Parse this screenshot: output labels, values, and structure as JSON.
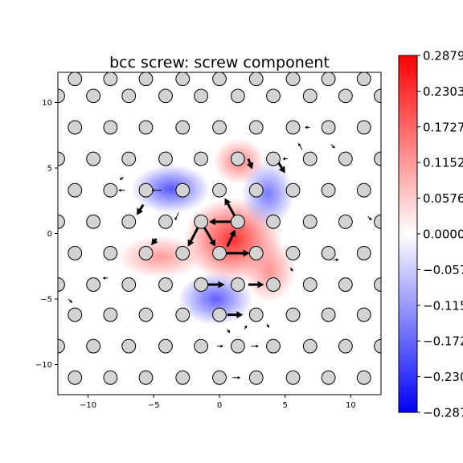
{
  "chart_data": {
    "type": "heatmap",
    "title": "bcc screw: screw component",
    "xlabel": "",
    "ylabel": "",
    "xlim": [
      -12.3,
      12.3
    ],
    "ylim": [
      -12.3,
      12.3
    ],
    "x_ticks": [
      -10,
      -5,
      0,
      5,
      10
    ],
    "y_ticks": [
      -10,
      -5,
      0,
      5,
      10
    ],
    "x_tick_labels": [
      "−10",
      "−5",
      "0",
      "5",
      "10"
    ],
    "y_tick_labels": [
      "−10",
      "−5",
      "0",
      "5",
      "10"
    ],
    "colorbar": {
      "colormap": "bwr",
      "vmin": -0.2879,
      "vmax": 0.2879,
      "ticks": [
        0.2879,
        0.2303,
        0.1727,
        0.1152,
        0.0576,
        0.0,
        -0.0576,
        -0.1152,
        -0.1727,
        -0.2303,
        -0.2879
      ],
      "tick_labels": [
        "0.2879",
        "0.2303",
        "0.1727",
        "0.1152",
        "0.0576",
        "0.0000",
        "−0.0576",
        "−0.1152",
        "−0.1727",
        "−0.2303",
        "−0.2879"
      ],
      "colors": {
        "min": "#0000ff",
        "mid": "#ffffff",
        "max": "#ff0000"
      }
    },
    "atom_rows": [
      {
        "y": 11.8,
        "x": [
          -11.0,
          -8.3,
          -5.6,
          -2.8,
          0.0,
          2.8,
          5.6,
          8.3,
          11.0
        ]
      },
      {
        "y": 10.5,
        "x": [
          -12.3,
          -9.6,
          -6.9,
          -4.1,
          -1.4,
          1.4,
          4.1,
          6.9,
          9.6,
          12.3
        ]
      },
      {
        "y": 8.1,
        "x": [
          -11.0,
          -8.3,
          -5.6,
          -2.8,
          0.0,
          2.8,
          5.6,
          8.3,
          11.0
        ]
      },
      {
        "y": 5.7,
        "x": [
          -12.3,
          -9.6,
          -6.9,
          -4.1,
          -1.4,
          1.4,
          4.1,
          6.9,
          9.6,
          12.3
        ]
      },
      {
        "y": 3.3,
        "x": [
          -11.0,
          -8.3,
          -5.6,
          -2.8,
          0.0,
          2.8,
          5.6,
          8.3,
          11.0
        ]
      },
      {
        "y": 0.9,
        "x": [
          -12.3,
          -9.6,
          -6.9,
          -4.1,
          -1.4,
          1.4,
          4.1,
          6.9,
          9.6,
          12.3
        ]
      },
      {
        "y": -1.5,
        "x": [
          -11.0,
          -8.3,
          -5.6,
          -2.8,
          0.0,
          2.8,
          5.6,
          8.3,
          11.0
        ]
      },
      {
        "y": -3.9,
        "x": [
          -12.3,
          -9.6,
          -6.9,
          -4.1,
          -1.4,
          1.4,
          4.1,
          6.9,
          9.6,
          12.3
        ]
      },
      {
        "y": -6.2,
        "x": [
          -11.0,
          -8.3,
          -5.6,
          -2.8,
          0.0,
          2.8,
          5.6,
          8.3,
          11.0
        ]
      },
      {
        "y": -8.6,
        "x": [
          -12.3,
          -9.6,
          -6.9,
          -4.1,
          -1.4,
          1.4,
          4.1,
          6.9,
          9.6,
          12.3
        ]
      },
      {
        "y": -11.0,
        "x": [
          -11.0,
          -8.3,
          -5.6,
          -2.8,
          0.0,
          2.8,
          5.6,
          8.3,
          11.0
        ]
      }
    ],
    "field_lobes": [
      {
        "x": 1.0,
        "y": -0.5,
        "value": 0.25,
        "sx": 3.0,
        "sy": 2.6
      },
      {
        "x": -4.5,
        "y": -1.8,
        "value": 0.12,
        "sx": 2.6,
        "sy": 1.3
      },
      {
        "x": 3.8,
        "y": -2.8,
        "value": 0.13,
        "sx": 1.6,
        "sy": 2.0
      },
      {
        "x": 1.5,
        "y": 5.5,
        "value": 0.15,
        "sx": 1.6,
        "sy": 1.4
      },
      {
        "x": -3.7,
        "y": 3.4,
        "value": -0.2,
        "sx": 2.4,
        "sy": 1.5
      },
      {
        "x": 3.7,
        "y": 3.0,
        "value": -0.16,
        "sx": 1.6,
        "sy": 2.0
      },
      {
        "x": -0.3,
        "y": -5.0,
        "value": -0.19,
        "sx": 2.3,
        "sy": 1.6
      }
    ],
    "arrows_bold": [
      {
        "x1": 1.4,
        "y1": 0.9,
        "x2": -0.8,
        "y2": 0.9
      },
      {
        "x1": 1.4,
        "y1": 0.9,
        "x2": 0.4,
        "y2": 2.7
      },
      {
        "x1": -1.4,
        "y1": 0.9,
        "x2": -0.3,
        "y2": -1.0
      },
      {
        "x1": -1.4,
        "y1": 0.9,
        "x2": -2.4,
        "y2": -1.0
      },
      {
        "x1": 0.0,
        "y1": -1.5,
        "x2": 2.3,
        "y2": -1.5
      },
      {
        "x1": 0.6,
        "y1": -1.0,
        "x2": 1.2,
        "y2": 0.3
      },
      {
        "x1": 2.2,
        "y1": 5.7,
        "x2": 2.5,
        "y2": 4.9
      },
      {
        "x1": 4.5,
        "y1": 5.4,
        "x2": 5.0,
        "y2": 4.6
      },
      {
        "x1": -1.0,
        "y1": -3.9,
        "x2": 0.4,
        "y2": -3.9
      },
      {
        "x1": 2.2,
        "y1": -3.9,
        "x2": 3.4,
        "y2": -3.9
      },
      {
        "x1": 0.6,
        "y1": -6.2,
        "x2": 1.8,
        "y2": -6.2
      },
      {
        "x1": -5.8,
        "y1": 2.2,
        "x2": -6.3,
        "y2": 1.4
      },
      {
        "x1": -4.8,
        "y1": -0.4,
        "x2": -5.2,
        "y2": -0.9
      }
    ],
    "arrows_small": [
      {
        "x1": -3.1,
        "y1": 1.6,
        "x2": -3.4,
        "y2": 1.0
      },
      {
        "x1": -4.4,
        "y1": 3.3,
        "x2": -5.2,
        "y2": 3.3
      },
      {
        "x1": -7.2,
        "y1": 3.3,
        "x2": -7.7,
        "y2": 3.3
      },
      {
        "x1": 5.2,
        "y1": 5.7,
        "x2": 4.8,
        "y2": 5.7
      },
      {
        "x1": 6.3,
        "y1": 6.4,
        "x2": 6.0,
        "y2": 6.9
      },
      {
        "x1": 8.5,
        "y1": 6.8,
        "x2": 8.8,
        "y2": 6.5
      },
      {
        "x1": 6.9,
        "y1": 8.1,
        "x2": 6.5,
        "y2": 8.1
      },
      {
        "x1": -9.9,
        "y1": 5.7,
        "x2": -9.6,
        "y2": 5.7
      },
      {
        "x1": -7.3,
        "y1": 4.3,
        "x2": -7.6,
        "y2": 4.1
      },
      {
        "x1": 1.0,
        "y1": -11.0,
        "x2": 1.6,
        "y2": -11.0
      },
      {
        "x1": -0.2,
        "y1": -8.6,
        "x2": 0.3,
        "y2": -8.6
      },
      {
        "x1": 2.4,
        "y1": -8.6,
        "x2": 3.0,
        "y2": -8.6
      },
      {
        "x1": 5.4,
        "y1": -2.6,
        "x2": 5.6,
        "y2": -2.9
      },
      {
        "x1": 0.6,
        "y1": -7.3,
        "x2": 0.8,
        "y2": -7.6
      },
      {
        "x1": 1.9,
        "y1": -7.3,
        "x2": 2.1,
        "y2": -7.0
      },
      {
        "x1": 3.6,
        "y1": -6.9,
        "x2": 3.8,
        "y2": -7.2
      },
      {
        "x1": -8.5,
        "y1": -3.4,
        "x2": -8.9,
        "y2": -3.4
      },
      {
        "x1": 8.7,
        "y1": -2.0,
        "x2": 9.1,
        "y2": -2.0
      },
      {
        "x1": 11.3,
        "y1": 1.3,
        "x2": 11.6,
        "y2": 1.0
      },
      {
        "x1": -11.5,
        "y1": -5.0,
        "x2": -11.2,
        "y2": -5.3
      }
    ]
  }
}
